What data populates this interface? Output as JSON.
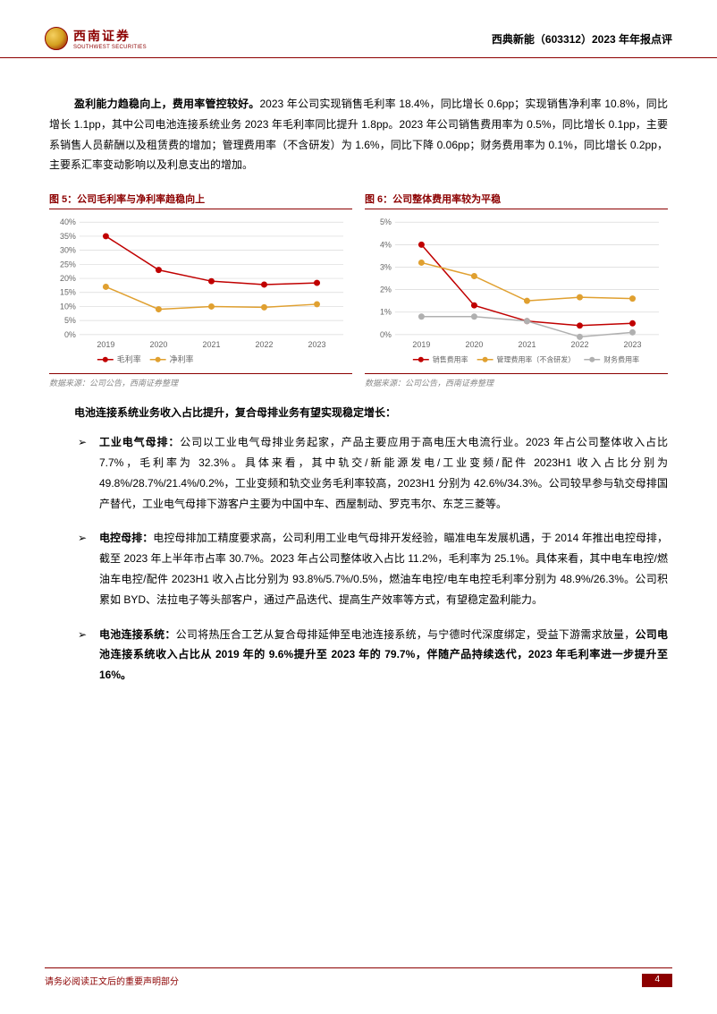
{
  "header": {
    "logo_cn": "西南证券",
    "logo_en": "SOUTHWEST SECURITIES",
    "right": "西典新能（603312）2023 年年报点评"
  },
  "para1": {
    "lead": "盈利能力趋稳向上，费用率管控较好。",
    "rest": "2023 年公司实现销售毛利率 18.4%，同比增长 0.6pp；实现销售净利率 10.8%，同比增长 1.1pp，其中公司电池连接系统业务 2023 年毛利率同比提升 1.8pp。2023 年公司销售费用率为 0.5%，同比增长 0.1pp，主要系销售人员薪酬以及租赁费的增加；管理费用率（不含研发）为 1.6%，同比下降 0.06pp；财务费用率为 0.1%，同比增长 0.2pp，主要系汇率变动影响以及利息支出的增加。"
  },
  "chart5": {
    "title": "图 5：公司毛利率与净利率趋稳向上",
    "source": "数据来源：公司公告，西南证券整理",
    "xcats": [
      "2019",
      "2020",
      "2021",
      "2022",
      "2023"
    ],
    "yticks": [
      0,
      5,
      10,
      15,
      20,
      25,
      30,
      35,
      40
    ],
    "ylim": [
      0,
      40
    ],
    "series": [
      {
        "name": "毛利率",
        "color": "#c00000",
        "values": [
          35,
          23,
          19,
          17.8,
          18.4
        ]
      },
      {
        "name": "净利率",
        "color": "#e0a030",
        "values": [
          17,
          9,
          10,
          9.7,
          10.8
        ]
      }
    ],
    "marker_radius": 3.5,
    "line_width": 1.5,
    "grid_color": "#d9d9d9",
    "axis_font": 9,
    "legend_font": 9,
    "bg": "#ffffff"
  },
  "chart6": {
    "title": "图 6：公司整体费用率较为平稳",
    "source": "数据来源：公司公告，西南证券整理",
    "xcats": [
      "2019",
      "2020",
      "2021",
      "2022",
      "2023"
    ],
    "yticks": [
      0,
      1,
      2,
      3,
      4,
      5
    ],
    "ylim": [
      0,
      5
    ],
    "series": [
      {
        "name": "销售费用率",
        "color": "#c00000",
        "values": [
          4.0,
          1.3,
          0.6,
          0.4,
          0.5
        ]
      },
      {
        "name": "管理费用率（不含研发）",
        "color": "#e0a030",
        "values": [
          3.2,
          2.6,
          1.5,
          1.66,
          1.6
        ]
      },
      {
        "name": "财务费用率",
        "color": "#b0b0b0",
        "values": [
          0.8,
          0.8,
          0.6,
          -0.1,
          0.1
        ]
      }
    ],
    "marker_radius": 3.5,
    "line_width": 1.5,
    "grid_color": "#d9d9d9",
    "axis_font": 9,
    "legend_font": 8,
    "bg": "#ffffff"
  },
  "section_heading": "电池连接系统业务收入占比提升，复合母排业务有望实现稳定增长：",
  "bullets": [
    {
      "lead": "工业电气母排：",
      "rest": "公司以工业电气母排业务起家，产品主要应用于高电压大电流行业。2023 年占公司整体收入占比 7.7%，毛利率为 32.3%。具体来看，其中轨交/新能源发电/工业变频/配件 2023H1 收入占比分别为 49.8%/28.7%/21.4%/0.2%，工业变频和轨交业务毛利率较高，2023H1 分别为 42.6%/34.3%。公司较早参与轨交母排国产替代，工业电气母排下游客户主要为中国中车、西屋制动、罗克韦尔、东芝三菱等。"
    },
    {
      "lead": "电控母排：",
      "rest": "电控母排加工精度要求高，公司利用工业电气母排开发经验，瞄准电车发展机遇，于 2014 年推出电控母排，截至 2023 年上半年市占率 30.7%。2023 年占公司整体收入占比 11.2%，毛利率为 25.1%。具体来看，其中电车电控/燃油车电控/配件 2023H1 收入占比分别为 93.8%/5.7%/0.5%，燃油车电控/电车电控毛利率分别为 48.9%/26.3%。公司积累如 BYD、法拉电子等头部客户，通过产品迭代、提高生产效率等方式，有望稳定盈利能力。"
    },
    {
      "lead": "电池连接系统：",
      "rest_before_bold": "公司将热压合工艺从复合母排延伸至电池连接系统，与宁德时代深度绑定，受益下游需求放量，",
      "bold_tail": "公司电池连接系统收入占比从 2019 年的 9.6%提升至 2023 年的 79.7%，伴随产品持续迭代，2023 年毛利率进一步提升至 16%。"
    }
  ],
  "footer": {
    "left": "请务必阅读正文后的重要声明部分",
    "page": "4"
  }
}
